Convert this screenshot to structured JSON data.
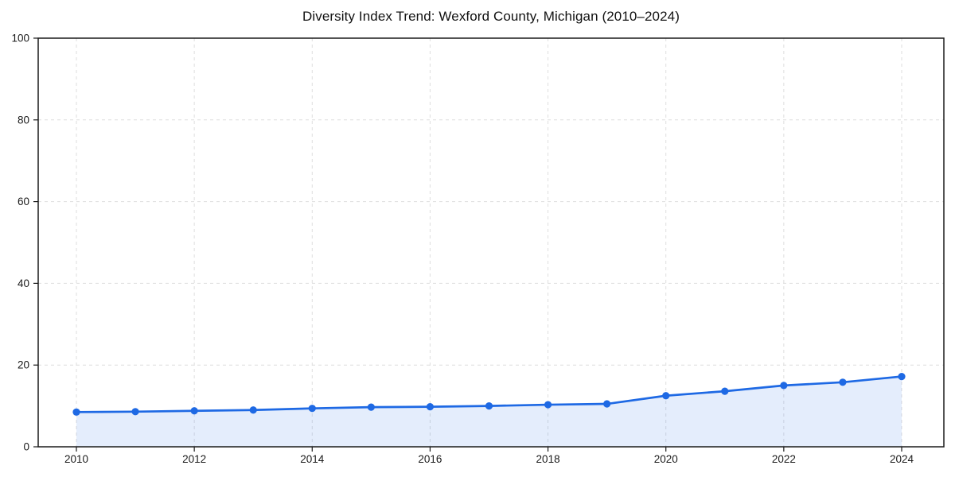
{
  "page": {
    "background": "#ffffff"
  },
  "chart_data": {
    "type": "line",
    "title": "Diversity Index Trend: Wexford County, Michigan (2010–2024)",
    "x": [
      2010,
      2011,
      2012,
      2013,
      2014,
      2015,
      2016,
      2017,
      2018,
      2019,
      2020,
      2021,
      2022,
      2023,
      2024
    ],
    "series": [
      {
        "name": "Diversity Index",
        "values": [
          8.5,
          8.6,
          8.8,
          9.0,
          9.4,
          9.7,
          9.8,
          10.0,
          10.3,
          10.5,
          12.5,
          13.6,
          15.0,
          15.8,
          17.2
        ]
      }
    ],
    "xlabel": "",
    "ylabel": "",
    "ylim": [
      0,
      100
    ],
    "xlim": [
      2009.35,
      2024.72
    ],
    "yticks": [
      0,
      20,
      40,
      60,
      80,
      100
    ],
    "xticks": [
      2010,
      2012,
      2014,
      2016,
      2018,
      2020,
      2022,
      2024
    ],
    "grid": true,
    "grid_style": "dashed",
    "legend": "none",
    "area_fill": true,
    "marker": "circle",
    "style": {
      "line_color": "#1e69e4",
      "marker_color": "#1e69e4",
      "fill_color": "#1e69e4",
      "fill_opacity": 0.12,
      "grid_color": "#dedede",
      "axis_color": "#1a1a1a",
      "tick_label_color": "#1a1a1a",
      "title_color": "#111111",
      "tick_font_size": 13.5,
      "line_width": 2.7,
      "marker_radius": 4.6
    }
  }
}
